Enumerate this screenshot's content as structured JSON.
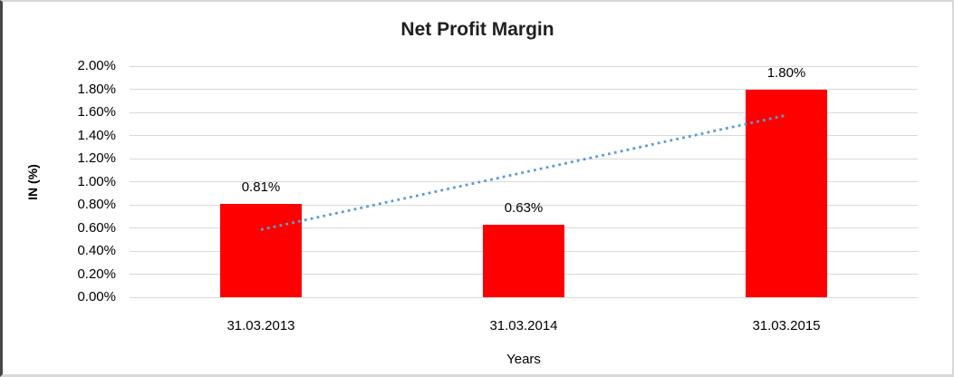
{
  "chart_data": {
    "type": "bar",
    "title": "Net Profit Margin",
    "xlabel": "Years",
    "ylabel": "IN (%)",
    "categories": [
      "31.03.2013",
      "31.03.2014",
      "31.03.2015"
    ],
    "values": [
      0.81,
      0.63,
      1.8
    ],
    "data_labels": [
      "0.81%",
      "0.63%",
      "1.80%"
    ],
    "ylim": [
      0,
      2
    ],
    "ytick_step": 0.2,
    "ytick_labels": [
      "0.00%",
      "0.20%",
      "0.40%",
      "0.60%",
      "0.80%",
      "1.00%",
      "1.20%",
      "1.40%",
      "1.60%",
      "1.80%",
      "2.00%"
    ],
    "bar_color": "#ff0000",
    "grid_color": "#d9d9d9",
    "legend": "none",
    "gridlines": true,
    "trendline": {
      "type": "linear",
      "style": "dotted",
      "color": "#5b9bd5",
      "start": {
        "category": "31.03.2013",
        "value": 0.585
      },
      "end": {
        "category": "31.03.2015",
        "value": 1.575
      }
    }
  }
}
